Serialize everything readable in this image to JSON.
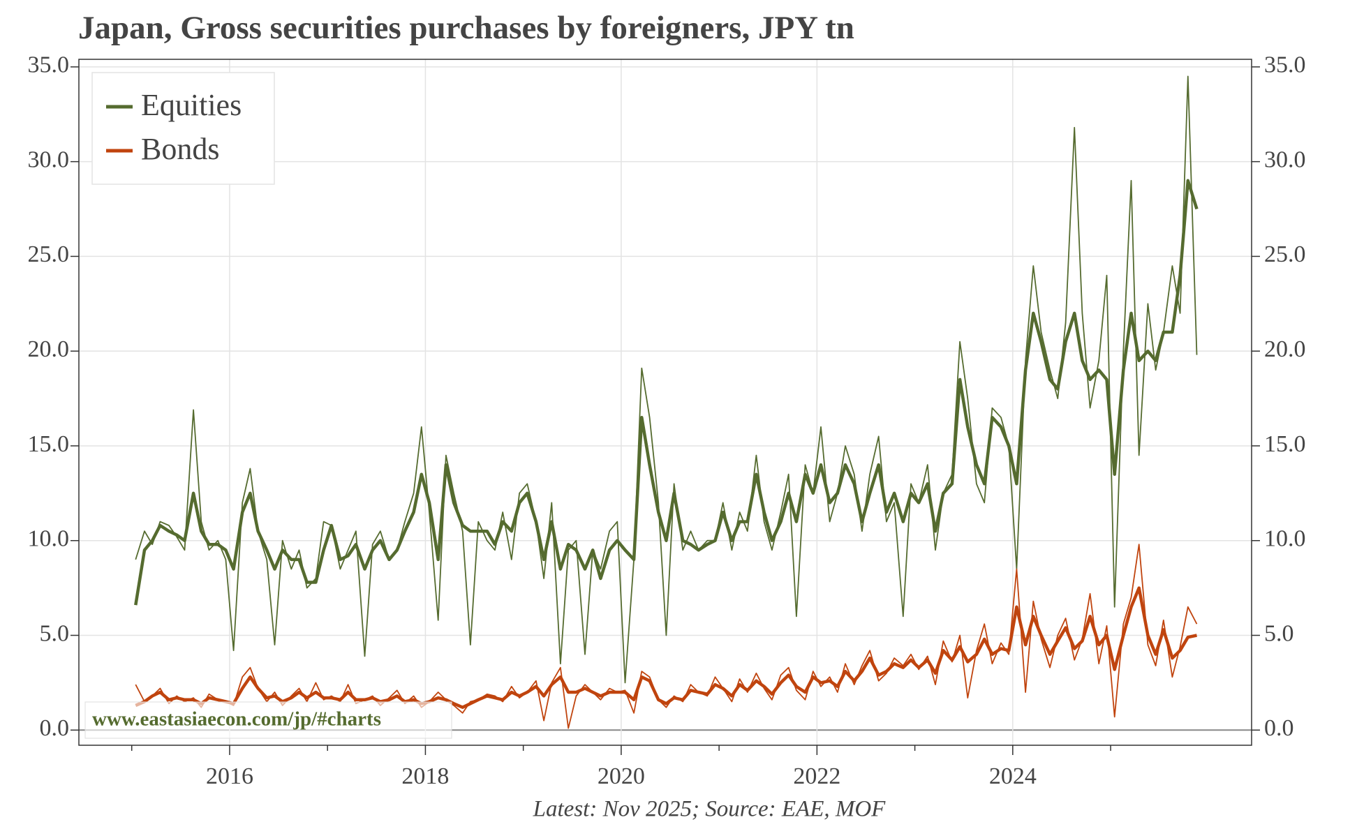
{
  "chart_data": {
    "type": "line",
    "title": "Japan, Gross securities purchases by foreigners, JPY tn",
    "footnote": "Latest: Nov 2025; Source: EAE, MOF",
    "watermark": "www.eastasiaecon.com/jp/#charts",
    "legend": "top-left",
    "grid": true,
    "xlim": [
      2014.46,
      2026.44
    ],
    "xticks": [
      2016,
      2018,
      2020,
      2022,
      2024
    ],
    "xminor": [
      2015,
      2017,
      2019,
      2021,
      2023,
      2025
    ],
    "ylim": [
      -0.8,
      35.4
    ],
    "yticks": [
      {
        "value": 0,
        "label": "0.0"
      },
      {
        "value": 5,
        "label": "5.0"
      },
      {
        "value": 10,
        "label": "10.0"
      },
      {
        "value": 15,
        "label": "15.0"
      },
      {
        "value": 20,
        "label": "20.0"
      },
      {
        "value": 25,
        "label": "25.0"
      },
      {
        "value": 30,
        "label": "30.0"
      },
      {
        "value": 35,
        "label": "35.0"
      }
    ],
    "x": [
      2015.04,
      2015.13,
      2015.21,
      2015.29,
      2015.38,
      2015.46,
      2015.54,
      2015.63,
      2015.71,
      2015.79,
      2015.88,
      2015.96,
      2016.04,
      2016.13,
      2016.21,
      2016.29,
      2016.38,
      2016.46,
      2016.54,
      2016.63,
      2016.71,
      2016.79,
      2016.88,
      2016.96,
      2017.04,
      2017.13,
      2017.21,
      2017.29,
      2017.38,
      2017.46,
      2017.54,
      2017.63,
      2017.71,
      2017.79,
      2017.88,
      2017.96,
      2018.04,
      2018.13,
      2018.21,
      2018.29,
      2018.38,
      2018.46,
      2018.54,
      2018.63,
      2018.71,
      2018.79,
      2018.88,
      2018.96,
      2019.04,
      2019.13,
      2019.21,
      2019.29,
      2019.38,
      2019.46,
      2019.54,
      2019.63,
      2019.71,
      2019.79,
      2019.88,
      2019.96,
      2020.04,
      2020.13,
      2020.21,
      2020.29,
      2020.38,
      2020.46,
      2020.54,
      2020.63,
      2020.71,
      2020.79,
      2020.88,
      2020.96,
      2021.04,
      2021.13,
      2021.21,
      2021.29,
      2021.38,
      2021.46,
      2021.54,
      2021.63,
      2021.71,
      2021.79,
      2021.88,
      2021.96,
      2022.04,
      2022.13,
      2022.21,
      2022.29,
      2022.38,
      2022.46,
      2022.54,
      2022.63,
      2022.71,
      2022.79,
      2022.88,
      2022.96,
      2023.04,
      2023.13,
      2023.21,
      2023.29,
      2023.38,
      2023.46,
      2023.54,
      2023.63,
      2023.71,
      2023.79,
      2023.88,
      2023.96,
      2024.04,
      2024.13,
      2024.21,
      2024.29,
      2024.38,
      2024.46,
      2024.54,
      2024.63,
      2024.71,
      2024.79,
      2024.88,
      2024.96,
      2025.04,
      2025.13,
      2025.21,
      2025.29,
      2025.38,
      2025.46,
      2025.54,
      2025.63,
      2025.71,
      2025.79,
      2025.88
    ],
    "series": [
      {
        "name": "Equities",
        "color": "#556b2f",
        "values": [
          9.0,
          10.5,
          9.8,
          11.0,
          10.8,
          10.2,
          9.5,
          16.9,
          11.0,
          9.5,
          10.0,
          9.0,
          4.2,
          12.0,
          13.8,
          10.5,
          9.0,
          4.5,
          10.0,
          8.5,
          9.5,
          7.5,
          8.0,
          11.0,
          10.8,
          8.5,
          9.5,
          10.5,
          3.9,
          9.8,
          10.5,
          9.0,
          9.5,
          11.0,
          12.5,
          16.0,
          11.5,
          5.8,
          14.5,
          12.5,
          10.5,
          4.5,
          11.0,
          10.0,
          9.5,
          11.5,
          9.0,
          12.5,
          13.0,
          11.0,
          8.0,
          12.0,
          3.5,
          9.5,
          10.0,
          4.0,
          9.5,
          8.5,
          10.5,
          11.0,
          2.5,
          9.0,
          19.1,
          16.5,
          12.0,
          5.0,
          13.0,
          9.5,
          10.5,
          9.5,
          10.0,
          10.0,
          12.0,
          9.5,
          11.5,
          10.5,
          14.5,
          11.0,
          9.5,
          11.5,
          13.5,
          6.0,
          14.0,
          12.5,
          16.0,
          11.0,
          12.5,
          15.0,
          13.5,
          10.5,
          13.5,
          15.5,
          11.0,
          12.0,
          6.0,
          13.0,
          12.0,
          14.0,
          9.5,
          12.5,
          13.5,
          20.5,
          17.5,
          13.0,
          12.0,
          17.0,
          16.5,
          15.0,
          8.5,
          19.5,
          24.5,
          21.0,
          19.0,
          17.5,
          21.5,
          31.8,
          22.0,
          17.0,
          19.5,
          24.0,
          6.5,
          20.0,
          29.0,
          14.5,
          22.5,
          19.0,
          21.0,
          24.5,
          22.0,
          34.5,
          19.8
        ],
        "smoothed": [
          6.6,
          9.5,
          10.0,
          10.8,
          10.5,
          10.3,
          10.0,
          12.5,
          10.5,
          9.8,
          9.8,
          9.5,
          8.5,
          11.5,
          12.5,
          10.5,
          9.5,
          8.5,
          9.5,
          9.0,
          9.0,
          7.8,
          7.8,
          9.5,
          10.8,
          9.0,
          9.2,
          9.8,
          8.5,
          9.5,
          10.0,
          9.0,
          9.5,
          10.5,
          11.5,
          13.5,
          12.0,
          9.0,
          14.0,
          12.0,
          10.8,
          10.5,
          10.5,
          10.5,
          9.8,
          11.0,
          10.5,
          12.0,
          12.5,
          11.0,
          9.0,
          11.0,
          8.5,
          9.8,
          9.5,
          8.5,
          9.5,
          8.0,
          9.5,
          10.0,
          9.5,
          9.0,
          16.5,
          14.0,
          11.5,
          10.0,
          12.5,
          10.0,
          9.8,
          9.5,
          9.8,
          10.0,
          11.5,
          10.0,
          11.0,
          11.0,
          13.5,
          11.5,
          10.0,
          11.0,
          12.5,
          11.0,
          13.5,
          12.5,
          14.0,
          12.0,
          12.5,
          14.0,
          13.0,
          11.0,
          12.5,
          14.0,
          11.5,
          12.5,
          11.0,
          12.5,
          12.0,
          13.0,
          10.5,
          12.5,
          13.0,
          18.5,
          16.0,
          14.0,
          13.0,
          16.5,
          16.0,
          15.0,
          13.0,
          19.0,
          22.0,
          20.5,
          18.5,
          18.0,
          20.5,
          22.0,
          19.5,
          18.5,
          19.0,
          18.5,
          13.5,
          19.0,
          22.0,
          19.5,
          20.0,
          19.5,
          21.0,
          21.0,
          24.0,
          29.0,
          27.5
        ]
      },
      {
        "name": "Bonds",
        "color": "#c0440e",
        "values": [
          2.4,
          1.5,
          1.8,
          2.2,
          1.4,
          1.8,
          1.5,
          1.7,
          1.2,
          1.9,
          1.6,
          1.5,
          1.3,
          2.8,
          3.3,
          2.2,
          1.5,
          2.0,
          1.3,
          1.8,
          2.2,
          1.5,
          2.5,
          1.6,
          1.8,
          1.5,
          2.4,
          1.4,
          1.6,
          1.8,
          1.3,
          1.7,
          2.1,
          1.4,
          1.8,
          1.2,
          1.5,
          2.0,
          1.6,
          1.3,
          0.9,
          1.5,
          1.6,
          1.9,
          1.8,
          1.5,
          2.3,
          1.7,
          2.0,
          2.6,
          0.5,
          2.5,
          3.3,
          0.1,
          1.8,
          2.4,
          2.0,
          1.6,
          2.2,
          2.0,
          2.1,
          0.9,
          3.1,
          2.8,
          1.6,
          1.2,
          1.8,
          1.5,
          2.4,
          2.0,
          1.8,
          2.8,
          2.2,
          1.5,
          2.7,
          2.0,
          3.0,
          2.2,
          1.6,
          2.9,
          3.3,
          2.1,
          1.6,
          3.1,
          2.3,
          2.8,
          2.0,
          3.5,
          2.4,
          3.4,
          4.2,
          2.6,
          3.0,
          3.8,
          3.4,
          4.0,
          3.2,
          3.9,
          2.4,
          4.7,
          3.6,
          5.0,
          1.7,
          4.2,
          5.6,
          3.5,
          4.6,
          4.0,
          8.5,
          2.0,
          6.8,
          4.8,
          3.3,
          5.0,
          5.9,
          3.7,
          4.8,
          7.2,
          3.5,
          5.5,
          0.7,
          5.6,
          7.0,
          9.8,
          4.5,
          3.4,
          5.8,
          2.8,
          4.4,
          6.5,
          5.6
        ],
        "smoothed": [
          1.3,
          1.5,
          1.8,
          2.0,
          1.6,
          1.7,
          1.6,
          1.6,
          1.4,
          1.7,
          1.6,
          1.5,
          1.4,
          2.2,
          2.8,
          2.2,
          1.7,
          1.8,
          1.5,
          1.7,
          2.0,
          1.7,
          2.0,
          1.7,
          1.7,
          1.6,
          2.0,
          1.6,
          1.6,
          1.7,
          1.5,
          1.6,
          1.8,
          1.5,
          1.6,
          1.4,
          1.5,
          1.7,
          1.6,
          1.4,
          1.2,
          1.4,
          1.6,
          1.8,
          1.7,
          1.6,
          2.0,
          1.8,
          2.0,
          2.3,
          1.8,
          2.4,
          2.8,
          2.0,
          2.0,
          2.2,
          2.0,
          1.8,
          2.0,
          2.0,
          2.0,
          1.6,
          2.8,
          2.6,
          1.6,
          1.4,
          1.7,
          1.6,
          2.1,
          2.0,
          1.9,
          2.4,
          2.2,
          1.8,
          2.4,
          2.1,
          2.6,
          2.3,
          1.9,
          2.5,
          2.9,
          2.3,
          2.0,
          2.8,
          2.5,
          2.6,
          2.3,
          3.1,
          2.6,
          3.1,
          3.8,
          2.9,
          3.1,
          3.5,
          3.3,
          3.7,
          3.3,
          3.7,
          3.0,
          4.2,
          3.7,
          4.4,
          3.6,
          4.0,
          4.8,
          4.0,
          4.3,
          4.2,
          6.5,
          4.5,
          6.0,
          5.0,
          4.0,
          4.7,
          5.4,
          4.3,
          4.7,
          6.0,
          4.5,
          5.0,
          3.2,
          5.0,
          6.5,
          7.5,
          5.0,
          4.0,
          5.3,
          3.8,
          4.2,
          4.9,
          5.0
        ]
      }
    ]
  }
}
